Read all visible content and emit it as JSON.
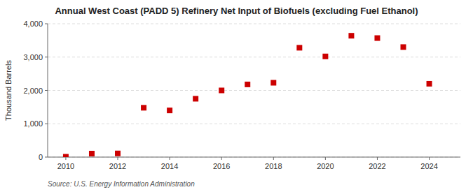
{
  "chart_data": {
    "type": "scatter",
    "title": "Annual West Coast (PADD 5) Refinery Net Input of Biofuels (excluding Fuel Ethanol)",
    "y_label": "Thousand Barrels",
    "annotations": [
      "Source: U.S. Energy Information Administration"
    ],
    "x": [
      2010,
      2011,
      2012,
      2013,
      2014,
      2015,
      2016,
      2017,
      2018,
      2019,
      2020,
      2021,
      2022,
      2023,
      2024
    ],
    "values": [
      10,
      105,
      110,
      1480,
      1400,
      1750,
      2000,
      2180,
      2230,
      3280,
      3020,
      3640,
      3570,
      3300,
      2200
    ],
    "color": "#cc0000",
    "marker": "square",
    "xlim": [
      2009.3,
      2025.2
    ],
    "xticks": [
      2010,
      2012,
      2014,
      2016,
      2018,
      2020,
      2022,
      2024
    ],
    "ylim": [
      0,
      4000
    ],
    "yticks": [
      0,
      {
        "value": 1000,
        "label": "1,000"
      },
      {
        "value": 2000,
        "label": "2,000"
      },
      {
        "value": 3000,
        "label": "3,000"
      },
      {
        "value": 4000,
        "label": "4,000"
      }
    ],
    "grid": true
  }
}
